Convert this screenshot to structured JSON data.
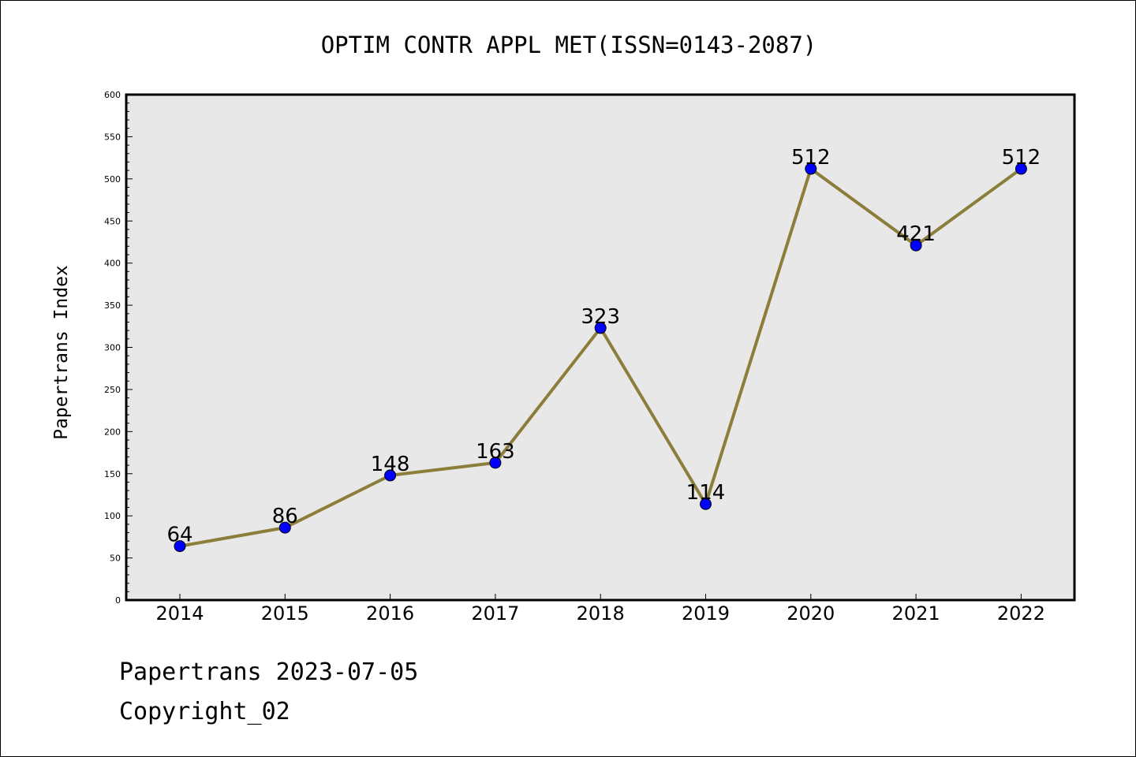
{
  "chart_data": {
    "type": "line",
    "title": "OPTIM CONTR APPL MET(ISSN=0143-2087)",
    "xlabel": "",
    "ylabel": "Papertrans Index",
    "categories": [
      "2014",
      "2015",
      "2016",
      "2017",
      "2018",
      "2019",
      "2020",
      "2021",
      "2022"
    ],
    "series": [
      {
        "values": [
          64,
          86,
          148,
          163,
          323,
          114,
          512,
          421,
          512
        ],
        "labels": [
          "64",
          "86",
          "148",
          "163",
          "323",
          "114",
          "512",
          "421",
          "512"
        ]
      }
    ],
    "ylim": [
      0,
      600
    ],
    "yticks": [
      "0",
      "50",
      "100",
      "150",
      "200",
      "250",
      "300",
      "350",
      "400",
      "450",
      "500",
      "550",
      "600"
    ],
    "grid": false,
    "legend": "none",
    "colors": {
      "line": "#8b7d3a",
      "marker": "#0000ff",
      "plot_background": "#e8e8e8"
    }
  },
  "footer": {
    "line1": "Papertrans 2023-07-05",
    "line2": "Copyright_02"
  }
}
